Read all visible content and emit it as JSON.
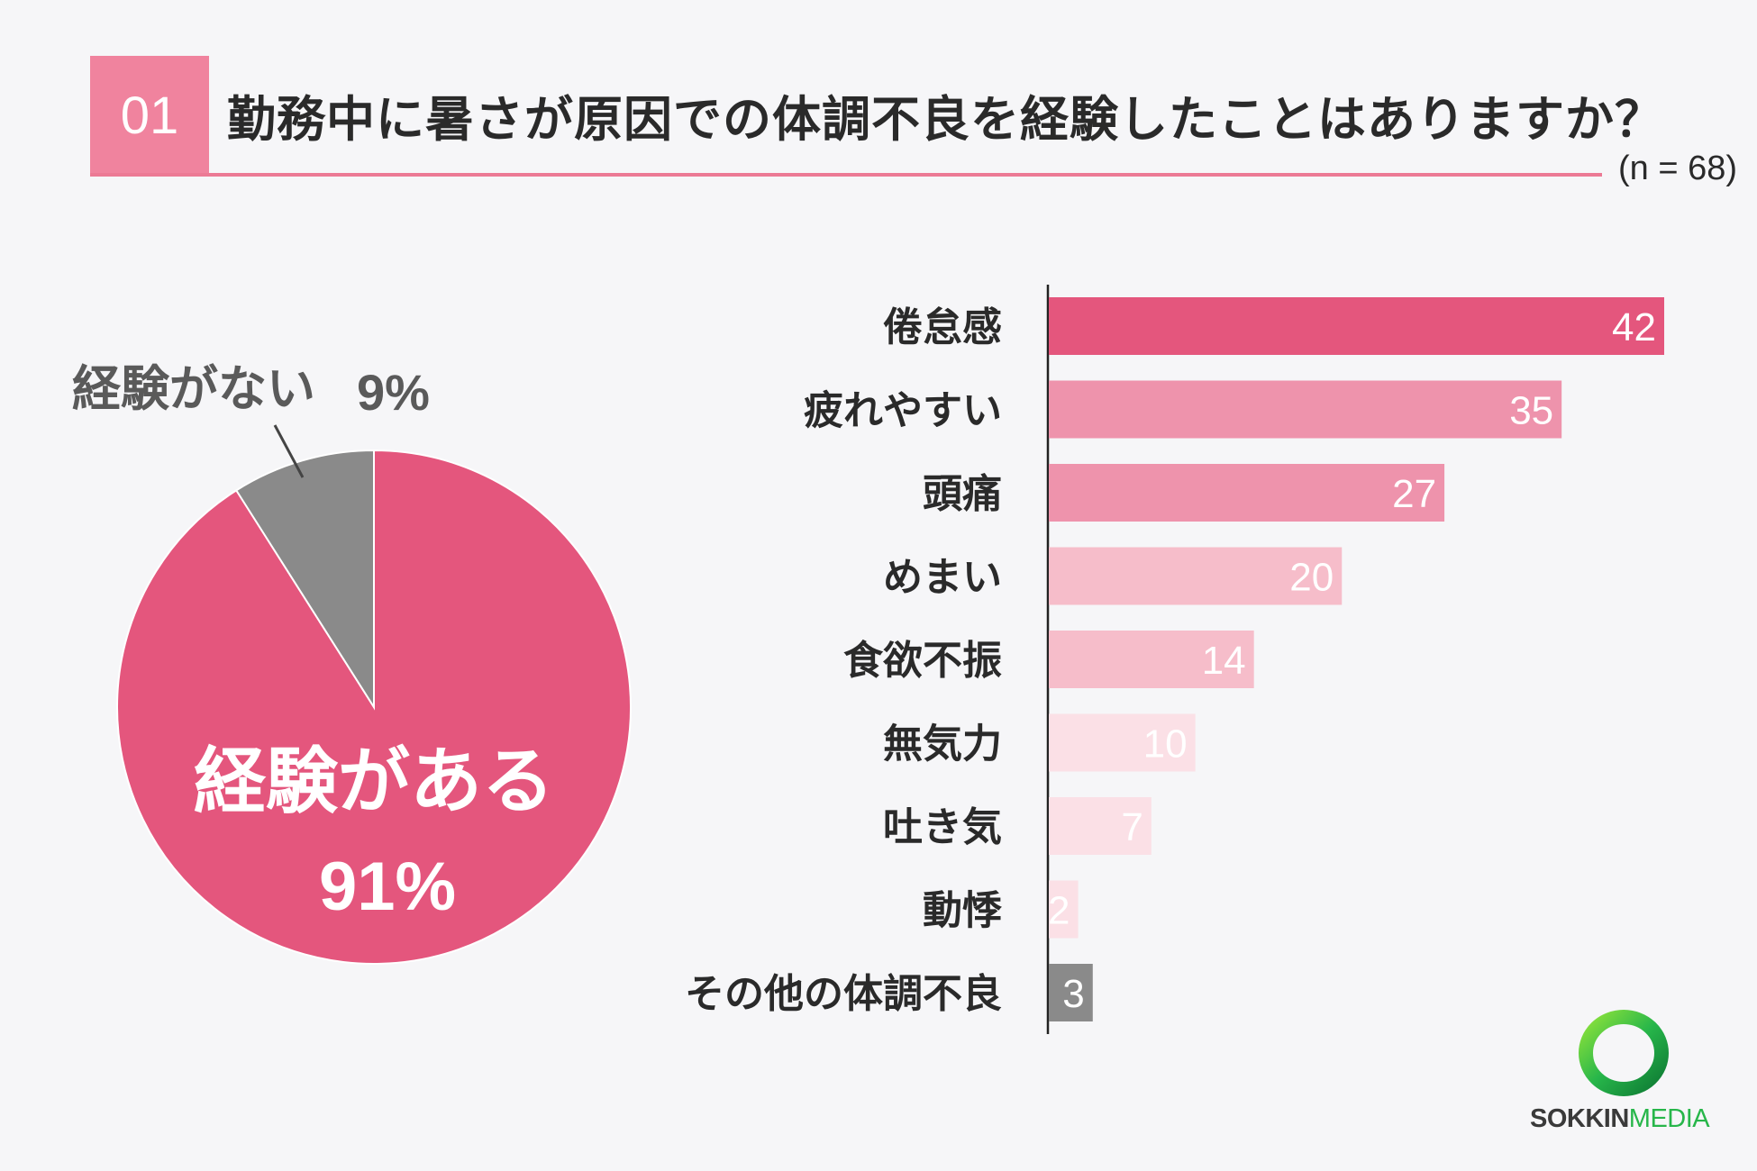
{
  "question": {
    "number": "01",
    "title": "勤務中に暑さが原因での体調不良を経験したことはありますか？",
    "sample_size": "(n = 68)"
  },
  "brand": {
    "name_bold": "SOKKIN",
    "name_light": "MEDIA",
    "accent": "#27b64a"
  },
  "colors": {
    "pink": "#e4567d",
    "gray": "#8a8a8a",
    "bar_shades": [
      "#e4567d",
      "#ee93ac",
      "#ee93ac",
      "#f6bdca",
      "#f6bdca",
      "#fbe0e6",
      "#fbe0e6",
      "#fbe0e6",
      "#8a8a8a"
    ]
  },
  "chart_data": [
    {
      "type": "pie",
      "slices": [
        {
          "label": "経験がある",
          "percent_label": "91%",
          "value": 91
        },
        {
          "label": "経験がない",
          "percent_label": "9%",
          "value": 9
        }
      ]
    },
    {
      "type": "bar",
      "orientation": "horizontal",
      "categories": [
        "倦怠感",
        "疲れやすい",
        "頭痛",
        "めまい",
        "食欲不振",
        "無気力",
        "吐き気",
        "動悸",
        "その他の体調不良"
      ],
      "values": [
        42,
        35,
        27,
        20,
        14,
        10,
        7,
        2,
        3
      ],
      "xlim": [
        0,
        42
      ]
    }
  ]
}
